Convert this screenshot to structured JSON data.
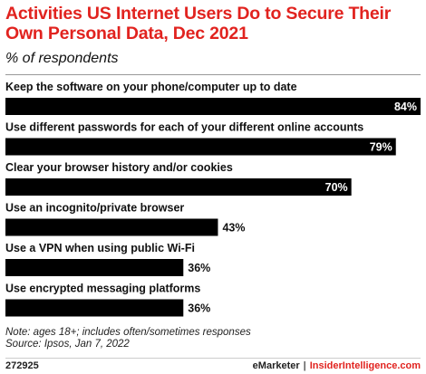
{
  "header": {
    "title": "Activities US Internet Users Do to Secure Their Own Personal Data, Dec 2021",
    "subtitle": "% of respondents"
  },
  "chart_data": {
    "type": "bar",
    "orientation": "horizontal",
    "categories": [
      "Keep the software on your phone/computer up to date",
      "Use different passwords for each of your different online accounts",
      "Clear your browser history and/or cookies",
      "Use an incognito/private browser",
      "Use a VPN when using public Wi-Fi",
      "Use encrypted messaging platforms"
    ],
    "values": [
      84,
      79,
      70,
      43,
      36,
      36
    ],
    "value_labels": [
      "84%",
      "79%",
      "70%",
      "43%",
      "36%",
      "36%"
    ],
    "xlim": [
      0,
      84
    ],
    "unit": "%",
    "bar_color": "#000000",
    "title": "Activities US Internet Users Do to Secure Their Own Personal Data, Dec 2021",
    "subtitle": "% of respondents"
  },
  "notes": {
    "line1": "Note: ages 18+; includes often/sometimes responses",
    "line2": "Source: Ipsos, Jan 7, 2022"
  },
  "footer": {
    "chart_id": "272925",
    "brand_left": "eMarketer",
    "separator": "|",
    "brand_right": "InsiderIntelligence.com"
  },
  "colors": {
    "accent": "#e1231f",
    "bar": "#000000",
    "text": "#111111"
  }
}
